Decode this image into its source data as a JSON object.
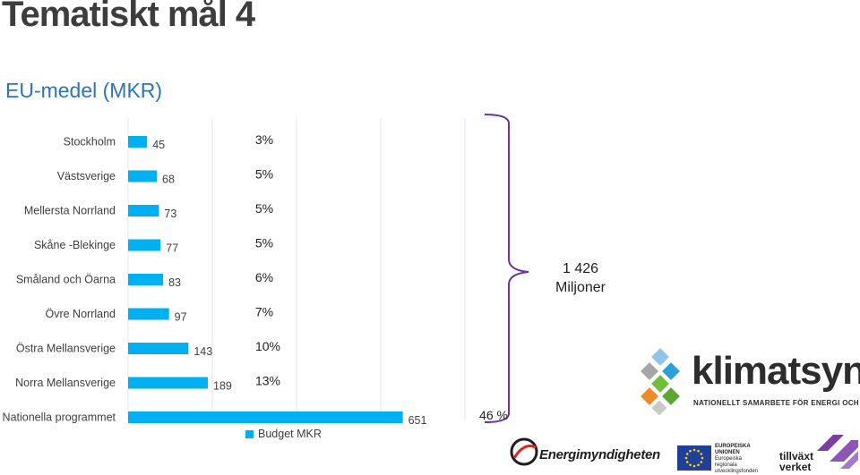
{
  "title": "Tematiskt mål 4",
  "subtitle": "EU-medel (MKR)",
  "chart_data": {
    "type": "bar",
    "orientation": "horizontal",
    "categories": [
      "Stockholm",
      "Västsverige",
      "Mellersta Norrland",
      "Skåne -Blekinge",
      "Småland och Öarna",
      "Övre Norrland",
      "Östra Mellansverige",
      "Norra Mellansverige",
      "Nationella programmet"
    ],
    "series": [
      {
        "name": "Budget MKR",
        "values": [
          45,
          68,
          73,
          77,
          83,
          97,
          143,
          189,
          651
        ]
      }
    ],
    "value_labels": [
      "45",
      "68",
      "73",
      "77",
      "83",
      "97",
      "143",
      "189",
      "651"
    ],
    "share_labels": [
      "3%",
      "5%",
      "5%",
      "5%",
      "6%",
      "7%",
      "10%",
      "13%",
      "46 %"
    ],
    "xlim": [
      0,
      1000
    ],
    "grid": true,
    "legend": "bottom",
    "bar_color": "#00b0f0",
    "bracket_color": "#7030a0",
    "annotation": {
      "line1": "1 426",
      "line2": "Miljoner"
    }
  },
  "logos": {
    "klimatsynk": {
      "word": "klimatsynk",
      "tagline": "NATIONELLT SAMARBETE FÖR ENERGI OCH KLIMAT"
    },
    "energimyndigheten": {
      "word": "Energimyndigheten"
    },
    "eu": {
      "line1": "EUROPEISKA",
      "line2": "UNIONEN",
      "line3": "Europeiska",
      "line4": "regionala",
      "line5": "utvecklingsfonden"
    },
    "tillvaxtverket": {
      "line1": "tillväxt",
      "line2": "verket"
    }
  }
}
